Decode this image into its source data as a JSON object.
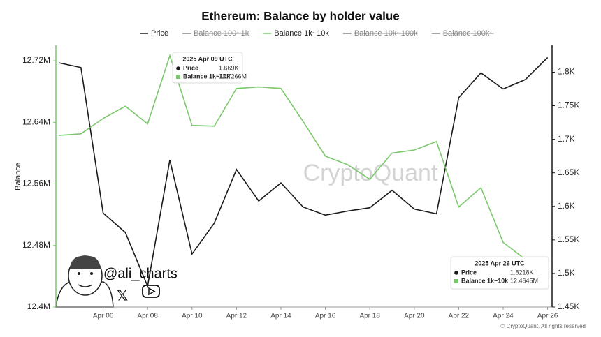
{
  "chart_data": {
    "type": "line",
    "title": "Ethereum: Balance by holder value",
    "y_label": "Balance",
    "categories": [
      null,
      null,
      "Apr 06",
      null,
      "Apr 08",
      null,
      "Apr 10",
      null,
      "Apr 12",
      null,
      "Apr 14",
      null,
      "Apr 16",
      null,
      "Apr 18",
      null,
      "Apr 20",
      null,
      "Apr 22",
      null,
      "Apr 24",
      null,
      "Apr 26"
    ],
    "series": [
      {
        "name": "Price",
        "color": "#1a1a1a",
        "axis": "y2",
        "values": [
          1.814,
          1.807,
          1.59,
          1.561,
          1.481,
          1.669,
          1.529,
          1.575,
          1.655,
          1.608,
          1.635,
          1.599,
          1.587,
          1.593,
          1.598,
          1.624,
          1.596,
          1.589,
          1.762,
          1.799,
          1.775,
          1.789,
          1.8218
        ]
      },
      {
        "name": "Balance 1k~10k",
        "color": "#7bc86c",
        "values": [
          12.623,
          12.625,
          12.645,
          12.661,
          12.638,
          12.7266,
          12.636,
          12.635,
          12.684,
          12.686,
          12.684,
          12.641,
          12.596,
          12.585,
          12.566,
          12.6,
          12.604,
          12.615,
          12.53,
          12.555,
          12.484,
          12.462,
          12.4645
        ]
      }
    ],
    "legend_order": [
      "Price",
      "Balance 100~1k",
      "Balance 1k~10k",
      "Balance 10k~100k",
      "Balance 100k~"
    ],
    "hidden_series": [
      "Balance 100~1k",
      "Balance 10k~100k",
      "Balance 100k~"
    ],
    "ylim": [
      12.4,
      12.74
    ],
    "yticks": [
      {
        "value": 12.4,
        "label": "12.4M"
      },
      {
        "value": 12.48,
        "label": "12.48M"
      },
      {
        "value": 12.56,
        "label": "12.56M"
      },
      {
        "value": 12.64,
        "label": "12.64M"
      },
      {
        "value": 12.72,
        "label": "12.72M"
      }
    ],
    "y2lim": [
      1.45,
      1.84
    ],
    "y2ticks": [
      {
        "value": 1.45,
        "label": "1.45K"
      },
      {
        "value": 1.5,
        "label": "1.5K"
      },
      {
        "value": 1.55,
        "label": "1.55K"
      },
      {
        "value": 1.6,
        "label": "1.6K"
      },
      {
        "value": 1.65,
        "label": "1.65K"
      },
      {
        "value": 1.7,
        "label": "1.7K"
      },
      {
        "value": 1.75,
        "label": "1.75K"
      },
      {
        "value": 1.8,
        "label": "1.8K"
      }
    ],
    "grid": false,
    "tooltips": [
      {
        "title": "2025 Apr 09 UTC",
        "rows": [
          {
            "name": "Price",
            "value": "1.669K"
          },
          {
            "name": "Balance 1k~10k",
            "value": "12.7266M"
          }
        ]
      },
      {
        "title": "2025 Apr 26 UTC",
        "rows": [
          {
            "name": "Price",
            "value": "1.8218K"
          },
          {
            "name": "Balance 1k~10k",
            "value": "12.4645M"
          }
        ]
      }
    ],
    "watermark": "CryptoQuant",
    "handle": "@ali_charts",
    "copyright": "© CryptoQuant. All rights reserved"
  }
}
